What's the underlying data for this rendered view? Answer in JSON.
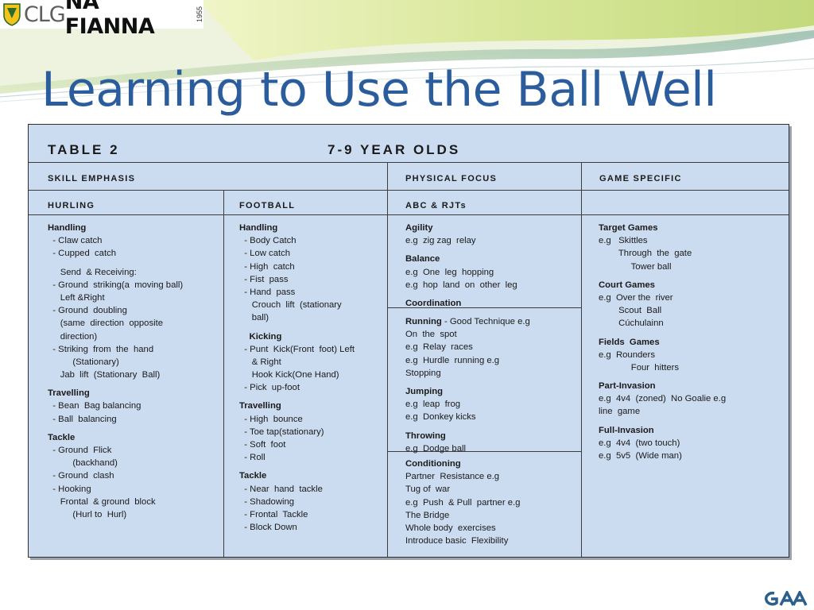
{
  "header": {
    "logo": {
      "clg": "CLG",
      "name": "NA FIANNA",
      "year": "1955"
    },
    "title": "Learning to Use the Ball Well"
  },
  "table": {
    "label": "TABLE 2",
    "age_group": "7-9 YEAR OLDS",
    "skill_emphasis": "SKILL EMPHASIS",
    "physical_focus": "PHYSICAL FOCUS",
    "game_specific": "GAME SPECIFIC",
    "hurling_header": "HURLING",
    "football_header": "FOOTBALL",
    "abc_header": "ABC & RJTs",
    "hurling": [
      {
        "t": "Handling",
        "b": true
      },
      {
        "t": "  - Claw catch"
      },
      {
        "t": "  - Cupped  catch"
      },
      {
        "gap": true
      },
      {
        "t": "     Send  & Receiving:"
      },
      {
        "t": "  - Ground  striking(a  moving ball)"
      },
      {
        "t": "     Left &Right"
      },
      {
        "t": "  - Ground  doubling"
      },
      {
        "t": "     (same  direction  opposite"
      },
      {
        "t": "     direction)"
      },
      {
        "t": "  - Striking  from  the  hand"
      },
      {
        "t": "          (Stationary)"
      },
      {
        "t": "     Jab  lift  (Stationary  Ball)"
      },
      {
        "gap": true
      },
      {
        "t": "Travelling",
        "b": true
      },
      {
        "t": "  - Bean  Bag balancing"
      },
      {
        "t": "  - Ball  balancing"
      },
      {
        "gap": true
      },
      {
        "t": "Tackle",
        "b": true
      },
      {
        "t": "  - Ground  Flick"
      },
      {
        "t": "          (backhand)"
      },
      {
        "t": "  - Ground  clash"
      },
      {
        "t": "  - Hooking"
      },
      {
        "t": "     Frontal  & ground  block"
      },
      {
        "t": "          (Hurl to  Hurl)"
      }
    ],
    "football": [
      {
        "t": "Handling",
        "b": true
      },
      {
        "t": "  - Body Catch"
      },
      {
        "t": "  - Low catch"
      },
      {
        "t": "  - High  catch"
      },
      {
        "t": "  - Fist  pass"
      },
      {
        "t": "  - Hand  pass"
      },
      {
        "t": "     Crouch  lift  (stationary"
      },
      {
        "t": "     ball)"
      },
      {
        "gap": true
      },
      {
        "t": "    Kicking",
        "b": true
      },
      {
        "t": "  - Punt  Kick(Front  foot) Left"
      },
      {
        "t": "     & Right"
      },
      {
        "t": "     Hook Kick(One Hand)"
      },
      {
        "t": "  - Pick  up-foot"
      },
      {
        "gap": true
      },
      {
        "t": "Travelling",
        "b": true
      },
      {
        "t": "  - High  bounce"
      },
      {
        "t": "  - Toe tap(stationary)"
      },
      {
        "t": "  - Soft  foot"
      },
      {
        "t": "  - Roll"
      },
      {
        "gap": true
      },
      {
        "t": "Tackle",
        "b": true
      },
      {
        "t": "  - Near  hand  tackle"
      },
      {
        "t": "  - Shadowing"
      },
      {
        "t": "  - Frontal  Tackle"
      },
      {
        "t": "  - Block Down"
      }
    ],
    "physical_top": [
      {
        "t": "Agility",
        "b": true
      },
      {
        "t": "e.g  zig zag  relay"
      },
      {
        "gap": true
      },
      {
        "t": "Balance",
        "b": true
      },
      {
        "t": "e.g  One  leg  hopping"
      },
      {
        "t": "e.g  hop  land  on  other  leg"
      },
      {
        "gap": true
      },
      {
        "t": "Coordination",
        "b": true
      }
    ],
    "physical_mid": [
      {
        "t": "Running",
        "b": true,
        "rest": " - Good Technique e.g"
      },
      {
        "t": "On  the  spot"
      },
      {
        "t": "e.g  Relay  races"
      },
      {
        "t": "e.g  Hurdle  running e.g"
      },
      {
        "t": "Stopping"
      },
      {
        "gap": true
      },
      {
        "t": "Jumping",
        "b": true
      },
      {
        "t": "e.g  leap  frog"
      },
      {
        "t": "e.g  Donkey kicks"
      },
      {
        "gap": true
      },
      {
        "t": "Throwing",
        "b": true
      },
      {
        "t": "e.g  Dodge ball"
      }
    ],
    "physical_bottom": [
      {
        "t": "Conditioning",
        "b": true
      },
      {
        "t": "Partner  Resistance e.g"
      },
      {
        "t": "Tug of  war"
      },
      {
        "t": "e.g  Push  & Pull  partner e.g"
      },
      {
        "t": "The Bridge"
      },
      {
        "t": "Whole body  exercises"
      },
      {
        "t": "Introduce basic  Flexibility"
      }
    ],
    "game_specific_list": [
      {
        "t": "Target Games",
        "b": true
      },
      {
        "t": "e.g   Skittles"
      },
      {
        "t": "        Through  the  gate"
      },
      {
        "t": "             Tower ball"
      },
      {
        "gap": true
      },
      {
        "t": "Court Games",
        "b": true
      },
      {
        "t": "e.g  Over the  river"
      },
      {
        "t": "        Scout  Ball"
      },
      {
        "t": "        Cúchulainn"
      },
      {
        "gap": true
      },
      {
        "t": "Fields  Games",
        "b": true
      },
      {
        "t": "e.g  Rounders"
      },
      {
        "t": "             Four  hitters"
      },
      {
        "gap": true
      },
      {
        "t": "Part-Invasion",
        "b": true
      },
      {
        "t": "e.g  4v4  (zoned)  No Goalie e.g"
      },
      {
        "t": "line  game"
      },
      {
        "gap": true
      },
      {
        "t": "Full-Invasion",
        "b": true
      },
      {
        "t": "e.g  4v4  (two touch)"
      },
      {
        "t": "e.g  5v5  (Wide man)"
      }
    ]
  }
}
